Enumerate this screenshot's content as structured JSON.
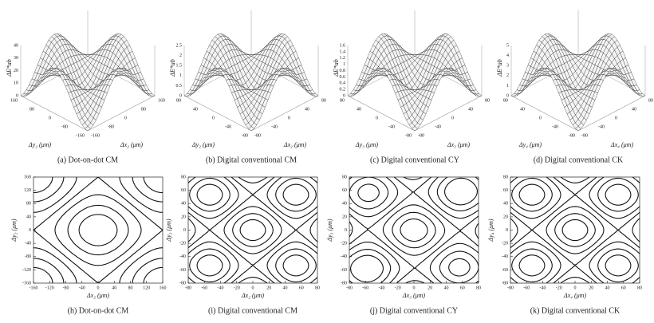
{
  "surfaces": [
    {
      "caption": "(a) Dot-on-dot CM",
      "z_label": "ΔE*ab",
      "y_label": "Δy₂ (μm)",
      "x_label": "Δx₂ (μm)",
      "z_ticks": [
        0,
        10,
        20,
        30,
        40
      ],
      "y_ticks": [
        160,
        80,
        0,
        -80,
        -160
      ],
      "x_ticks": [
        -160,
        -80,
        0,
        80,
        160
      ]
    },
    {
      "caption": "(b) Digital conventional CM",
      "z_label": "ΔE*ab",
      "y_label": "Δy₂ (μm)",
      "x_label": "Δx₂ (μm)",
      "z_ticks": [
        0,
        0.5,
        1,
        1.5,
        2,
        2.5
      ],
      "y_ticks": [
        80,
        40,
        0,
        -40,
        -80
      ],
      "x_ticks": [
        -80,
        -40,
        0,
        40,
        80
      ]
    },
    {
      "caption": "(c) Digital conventional CY",
      "z_label": "ΔE*ab",
      "y_label": "Δy₃ (μm)",
      "x_label": "Δx₃ (μm)",
      "z_ticks": [
        0,
        0.2,
        0.4,
        0.6,
        0.8,
        1,
        1.2,
        1.4,
        1.6
      ],
      "y_ticks": [
        80,
        40,
        0,
        -40,
        -80
      ],
      "x_ticks": [
        -80,
        -40,
        0,
        40,
        80
      ]
    },
    {
      "caption": "(d) Digital conventional CK",
      "z_label": "ΔE*ab",
      "y_label": "Δy₄ (μm)",
      "x_label": "Δx₄ (μm)",
      "z_ticks": [
        0,
        1,
        2,
        3,
        4,
        5
      ],
      "y_ticks": [
        80,
        40,
        0,
        -40,
        -80
      ],
      "x_ticks": [
        -80,
        -40,
        0,
        40,
        80
      ]
    }
  ],
  "contours": [
    {
      "caption": "(h) Dot-on-dot CM",
      "y_label": "Δy₂ (μm)",
      "x_label": "Δx₂ (μm)",
      "y_ticks": [
        160,
        120,
        80,
        40,
        0,
        -40,
        -80,
        -120,
        -160
      ],
      "x_ticks": [
        -160,
        -120,
        -80,
        -40,
        0,
        40,
        80,
        120,
        160
      ]
    },
    {
      "caption": "(i) Digital conventional CM",
      "y_label": "Δy₂ (μm)",
      "x_label": "Δx₂ (μm)",
      "y_ticks": [
        80,
        60,
        40,
        20,
        0,
        -20,
        -40,
        -60,
        -80
      ],
      "x_ticks": [
        -80,
        -60,
        -40,
        -20,
        0,
        20,
        40,
        60,
        80
      ]
    },
    {
      "caption": "(j) Digital conventional CY",
      "y_label": "Δy₃ (μm)",
      "x_label": "Δx₃ (μm)",
      "y_ticks": [
        80,
        60,
        40,
        20,
        0,
        -20,
        -40,
        -60,
        -80
      ],
      "x_ticks": [
        -80,
        -60,
        -40,
        -20,
        0,
        20,
        40,
        60,
        80
      ]
    },
    {
      "caption": "(k) Digital conventional CK",
      "y_label": "Δy₄ (μm)",
      "x_label": "Δx₄ (μm)",
      "y_ticks": [
        80,
        60,
        40,
        20,
        0,
        -20,
        -40,
        -60,
        -80
      ],
      "x_ticks": [
        -80,
        -60,
        -40,
        -20,
        0,
        20,
        40,
        60,
        80
      ]
    }
  ]
}
